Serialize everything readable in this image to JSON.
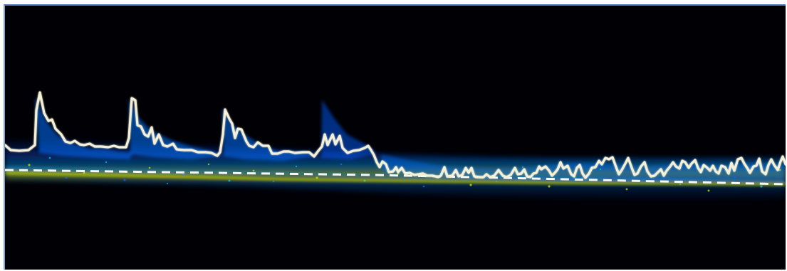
{
  "image": {
    "kind": "spectral doppler waveform display",
    "colors": {
      "background": "#000005",
      "frame_accent": "#4a78b8",
      "envelope": "#f4f1d8",
      "baseline": "#f8f8f8",
      "spectral_low": "#1b5dff",
      "spectral_mid": "#00b7ff",
      "spectral_high": "#c7d800"
    }
  }
}
